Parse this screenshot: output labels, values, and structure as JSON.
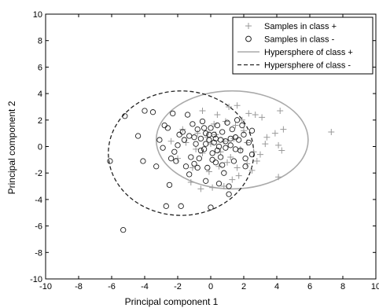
{
  "chart_data": {
    "type": "scatter",
    "title": "",
    "xlabel": "Principal component 1",
    "ylabel": "Principal component 2",
    "xlim": [
      -10,
      10
    ],
    "ylim": [
      -10,
      10
    ],
    "xticks": [
      "-10",
      "-8",
      "-6",
      "-4",
      "-2",
      "0",
      "2",
      "4",
      "6",
      "8",
      "10"
    ],
    "yticks": [
      "-10",
      "-8",
      "-6",
      "-4",
      "-2",
      "0",
      "2",
      "4",
      "6",
      "8",
      "10"
    ],
    "grid": false,
    "legend_position": "top-right",
    "colors": {
      "class_plus": "#9a9a9a",
      "class_minus": "#222222",
      "axis": "#000000"
    },
    "series": [
      {
        "name": "Samples in class +",
        "marker": "plus",
        "points": [
          [
            7.3,
            1.1
          ],
          [
            4.2,
            2.7
          ],
          [
            3.9,
            1.0
          ],
          [
            4.1,
            0.1
          ],
          [
            4.3,
            -0.3
          ],
          [
            4.4,
            1.3
          ],
          [
            4.1,
            -2.3
          ],
          [
            3.1,
            2.2
          ],
          [
            2.7,
            2.4
          ],
          [
            2.3,
            2.5
          ],
          [
            1.6,
            3.1
          ],
          [
            1.1,
            3.0
          ],
          [
            0.4,
            2.4
          ],
          [
            -0.5,
            2.7
          ],
          [
            3.4,
            0.7
          ],
          [
            3.0,
            -0.6
          ],
          [
            2.8,
            -1.1
          ],
          [
            2.5,
            -1.8
          ],
          [
            2.2,
            -1.3
          ],
          [
            1.7,
            -2.2
          ],
          [
            1.3,
            -2.5
          ],
          [
            0.8,
            -3.0
          ],
          [
            0.1,
            -3.1
          ],
          [
            -0.6,
            -3.2
          ],
          [
            -1.2,
            -2.7
          ],
          [
            2.0,
            1.2
          ],
          [
            1.5,
            1.6
          ],
          [
            0.9,
            1.9
          ],
          [
            1.8,
            -0.2
          ],
          [
            1.2,
            -0.8
          ],
          [
            0.5,
            -1.5
          ],
          [
            -0.1,
            -1.9
          ],
          [
            0.3,
            0.9
          ],
          [
            0.8,
            0.4
          ],
          [
            1.4,
            0.6
          ],
          [
            2.2,
            0.3
          ],
          [
            -0.2,
            0.7
          ],
          [
            -0.5,
            -0.5
          ],
          [
            0.6,
            -0.4
          ],
          [
            1.0,
            -1.2
          ],
          [
            2.6,
            -0.4
          ],
          [
            -0.8,
            1.0
          ],
          [
            -1.5,
            0.3
          ],
          [
            -2.0,
            -0.9
          ],
          [
            -1.1,
            -1.6
          ],
          [
            -2.4,
            0.4
          ],
          [
            0.2,
            1.7
          ],
          [
            1.9,
            2.0
          ],
          [
            3.3,
            0.2
          ],
          [
            -0.9,
            -0.2
          ],
          [
            0.0,
            0.2
          ],
          [
            1.6,
            -1.6
          ],
          [
            -1.7,
            1.3
          ]
        ]
      },
      {
        "name": "Samples in class -",
        "marker": "circle",
        "points": [
          [
            -6.1,
            -1.1
          ],
          [
            -5.3,
            -6.3
          ],
          [
            -5.2,
            2.3
          ],
          [
            -4.4,
            0.8
          ],
          [
            -4.0,
            2.7
          ],
          [
            -4.1,
            -1.1
          ],
          [
            -3.5,
            2.6
          ],
          [
            -3.3,
            -1.5
          ],
          [
            -3.1,
            0.5
          ],
          [
            -2.8,
            1.6
          ],
          [
            -2.7,
            -4.5
          ],
          [
            -2.5,
            -2.9
          ],
          [
            -2.3,
            2.5
          ],
          [
            -2.6,
            1.4
          ],
          [
            -2.2,
            -0.4
          ],
          [
            -2.1,
            -1.1
          ],
          [
            -2.0,
            0.1
          ],
          [
            -1.8,
            -4.5
          ],
          [
            -1.7,
            1.1
          ],
          [
            -1.5,
            -1.5
          ],
          [
            -1.4,
            2.4
          ],
          [
            -1.3,
            0.8
          ],
          [
            -1.2,
            -0.8
          ],
          [
            -1.1,
            1.7
          ],
          [
            -1.0,
            -1.3
          ],
          [
            -0.9,
            0.2
          ],
          [
            -0.8,
            1.3
          ],
          [
            -0.7,
            -0.9
          ],
          [
            -0.6,
            0.6
          ],
          [
            -0.5,
            1.9
          ],
          [
            -0.4,
            -0.2
          ],
          [
            -0.3,
            1.0
          ],
          [
            -0.2,
            -1.6
          ],
          [
            -0.1,
            0.5
          ],
          [
            0.0,
            -4.6
          ],
          [
            0.0,
            1.4
          ],
          [
            0.1,
            -0.5
          ],
          [
            0.2,
            0.9
          ],
          [
            0.3,
            -1.2
          ],
          [
            0.4,
            1.6
          ],
          [
            0.5,
            0.0
          ],
          [
            0.6,
            -0.8
          ],
          [
            0.7,
            1.1
          ],
          [
            0.8,
            -2.0
          ],
          [
            0.9,
            0.4
          ],
          [
            1.0,
            1.8
          ],
          [
            1.1,
            -3.0
          ],
          [
            1.1,
            -3.6
          ],
          [
            1.2,
            0.1
          ],
          [
            1.3,
            1.3
          ],
          [
            1.4,
            -1.1
          ],
          [
            1.5,
            0.7
          ],
          [
            1.6,
            2.0
          ],
          [
            1.8,
            -0.3
          ],
          [
            2.0,
            0.9
          ],
          [
            2.1,
            -1.5
          ],
          [
            2.3,
            0.3
          ],
          [
            2.5,
            1.2
          ],
          [
            2.5,
            -0.6
          ],
          [
            -0.3,
            0.2
          ],
          [
            0.2,
            0.3
          ],
          [
            0.6,
            0.5
          ],
          [
            -0.6,
            -0.3
          ],
          [
            0.9,
            -0.1
          ],
          [
            -1.6,
            0.5
          ],
          [
            1.7,
            0.5
          ],
          [
            -2.4,
            -0.9
          ],
          [
            0.4,
            -0.3
          ],
          [
            -0.1,
            0.9
          ],
          [
            1.2,
            0.6
          ],
          [
            -1.0,
            0.7
          ],
          [
            0.3,
            0.6
          ],
          [
            -0.8,
            -1.6
          ],
          [
            0.7,
            -1.4
          ],
          [
            1.5,
            -0.2
          ],
          [
            -1.9,
            0.9
          ],
          [
            -0.4,
            1.4
          ],
          [
            0.1,
            -1.0
          ],
          [
            2.1,
            -0.9
          ],
          [
            -1.3,
            -2.1
          ],
          [
            -0.3,
            -2.6
          ],
          [
            0.5,
            -2.8
          ],
          [
            -2.9,
            -0.1
          ],
          [
            1.9,
            1.6
          ]
        ]
      }
    ],
    "hyperspheres": [
      {
        "name": "Hypersphere of class +",
        "center": [
          1.3,
          0.5
        ],
        "radius_x": 4.6,
        "radius_y": 3.7,
        "style": "solid"
      },
      {
        "name": "Hypersphere of class -",
        "center": [
          -1.8,
          -0.5
        ],
        "radius_x": 4.4,
        "radius_y": 4.7,
        "style": "dashed"
      }
    ]
  }
}
